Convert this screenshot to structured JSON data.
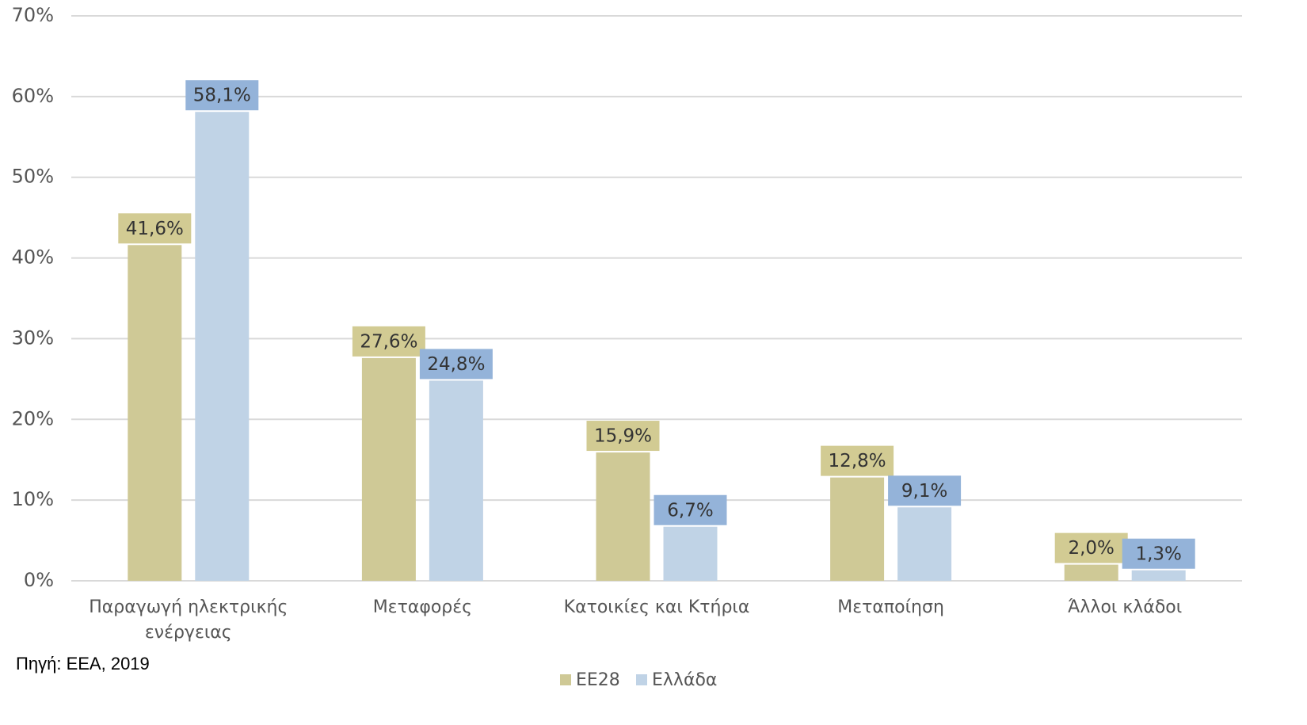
{
  "chart_data": {
    "type": "bar",
    "categories": [
      "Παραγωγή ηλεκτρικής ενέργειας",
      "Μεταφορές",
      "Κατοικίες και Κτήρια",
      "Μεταποίηση",
      "Άλλοι κλάδοι"
    ],
    "series": [
      {
        "name": "ΕΕ28",
        "color": "#cfc996",
        "label_color": "#d2cb93",
        "values": [
          41.6,
          27.6,
          15.9,
          12.8,
          2.0
        ],
        "value_labels": [
          "41,6%",
          "27,6%",
          "15,9%",
          "12,8%",
          "2,0%"
        ]
      },
      {
        "name": "Ελλάδα",
        "color": "#c0d3e6",
        "label_color": "#94b3d9",
        "values": [
          58.1,
          24.8,
          6.7,
          9.1,
          1.3
        ],
        "value_labels": [
          "58,1%",
          "24,8%",
          "6,7%",
          "9,1%",
          "1,3%"
        ]
      }
    ],
    "ylim": [
      0,
      70
    ],
    "yticks": [
      {
        "value": 0,
        "label": "0%"
      },
      {
        "value": 10,
        "label": "10%"
      },
      {
        "value": 20,
        "label": "20%"
      },
      {
        "value": 30,
        "label": "30%"
      },
      {
        "value": 40,
        "label": "40%"
      },
      {
        "value": 50,
        "label": "50%"
      },
      {
        "value": 60,
        "label": "60%"
      },
      {
        "value": 70,
        "label": "70%"
      }
    ],
    "grid": true,
    "legend": "bottom",
    "source": "Πηγή: ΕΕΑ, 2019"
  }
}
